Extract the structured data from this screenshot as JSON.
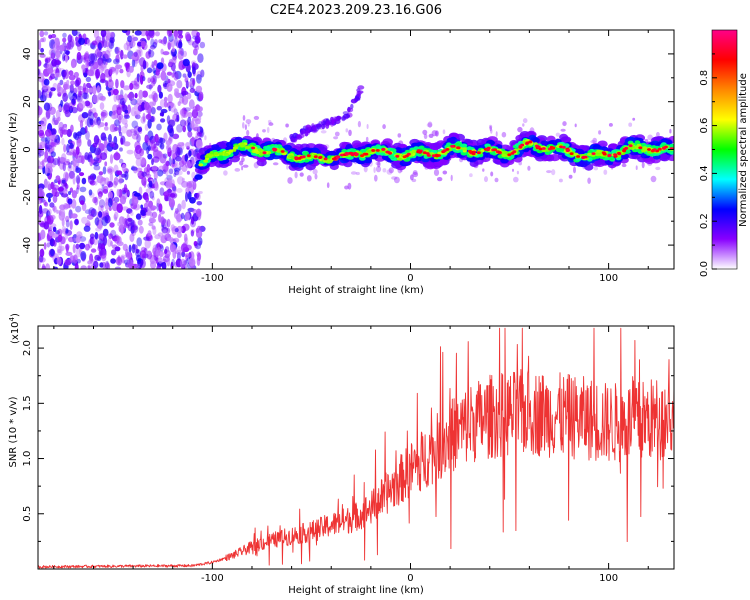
{
  "figure_title": "C2E4.2023.209.23.16.G06",
  "chart_data": [
    {
      "type": "heatmap",
      "title": "C2E4.2023.209.23.16.G06",
      "xlabel": "Height of straight line (km)",
      "ylabel": "Frequency (Hz)",
      "xlim": [
        -188,
        133
      ],
      "ylim": [
        -50,
        50
      ],
      "xticks": [
        -100,
        0,
        100
      ],
      "xtick_labels": [
        "-100",
        "0",
        "100"
      ],
      "yticks": [
        -40,
        -20,
        0,
        20,
        40
      ],
      "ytick_labels": [
        "-40",
        "-20",
        "0",
        "20",
        "40"
      ],
      "noise_region_x": [
        -188,
        -107
      ],
      "signal_trace": {
        "x": [
          -107,
          -100,
          -90,
          -80,
          -70,
          -60,
          -50,
          -40,
          -30,
          -20,
          -10,
          0,
          10,
          20,
          30,
          40,
          50,
          60,
          70,
          80,
          90,
          100,
          110,
          120,
          133
        ],
        "y": [
          -9,
          -2,
          0,
          1,
          -1,
          -2,
          -4,
          -3,
          -3,
          0,
          -2,
          -2,
          -2,
          0,
          0,
          -1,
          -1,
          2,
          1,
          -1,
          -3,
          -2,
          0,
          1,
          -1
        ]
      },
      "faint_branch": {
        "x": [
          -60,
          -50,
          -40,
          -30,
          -25
        ],
        "y": [
          5,
          9,
          11,
          16,
          26
        ]
      },
      "colorbar": {
        "label": "Normalized spectral amplitude",
        "range": [
          0,
          1
        ],
        "ticks": [
          0,
          0.2,
          0.4,
          0.6,
          0.8
        ],
        "tick_labels": [
          "0.0",
          "0.2",
          "0.4",
          "0.6",
          "0.8"
        ],
        "colors": [
          "#ffffff",
          "#8800ff",
          "#0000ff",
          "#00ffff",
          "#00ff00",
          "#ffff00",
          "#ff8800",
          "#ff0000",
          "#ff0088"
        ]
      }
    },
    {
      "type": "line",
      "xlabel": "Height of straight line (km)",
      "ylabel": "SNR (10 * v/v)",
      "y_multiplier": "(x10",
      "y_multiplier_exp": "4",
      "xlim": [
        -188,
        133
      ],
      "ylim": [
        0,
        2.2
      ],
      "xticks": [
        -100,
        0,
        100
      ],
      "xtick_labels": [
        "-100",
        "0",
        "100"
      ],
      "yticks": [
        0.5,
        1.0,
        1.5,
        2.0
      ],
      "ytick_labels": [
        "0.5",
        "1.0",
        "1.5",
        "2.0"
      ],
      "line_color": "#ee3333",
      "envelope": {
        "x": [
          -188,
          -110,
          -100,
          -90,
          -80,
          -70,
          -60,
          -50,
          -40,
          -30,
          -20,
          -10,
          0,
          10,
          20,
          30,
          40,
          50,
          60,
          70,
          80,
          90,
          100,
          110,
          120,
          133
        ],
        "y": [
          0.02,
          0.03,
          0.06,
          0.12,
          0.2,
          0.26,
          0.3,
          0.34,
          0.4,
          0.45,
          0.55,
          0.72,
          0.9,
          1.05,
          1.2,
          1.32,
          1.38,
          1.4,
          1.42,
          1.4,
          1.38,
          1.36,
          1.32,
          1.33,
          1.35,
          1.38
        ]
      }
    }
  ]
}
